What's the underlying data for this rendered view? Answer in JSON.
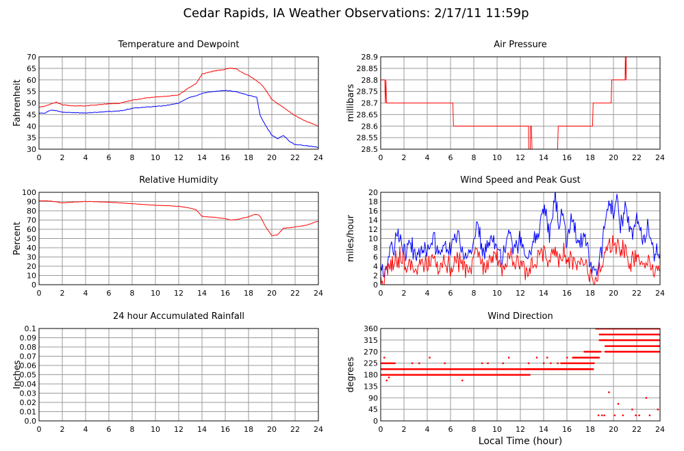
{
  "title": "Cedar Rapids, IA Weather Observations: 2/17/11 11:59p",
  "colors": {
    "red": "#ff0000",
    "blue": "#0000ff",
    "grid": "#999999"
  },
  "chart_data": [
    {
      "type": "line",
      "title": "Temperature and Dewpoint",
      "xlabel": "",
      "ylabel": "Fahrenheit",
      "xlim": [
        0,
        24
      ],
      "ylim": [
        30,
        70
      ],
      "xticks": [
        0,
        2,
        4,
        6,
        8,
        10,
        12,
        14,
        16,
        18,
        20,
        22,
        24
      ],
      "yticks": [
        30,
        35,
        40,
        45,
        50,
        55,
        60,
        65,
        70
      ],
      "ytick_labels": [
        "30",
        "35",
        "40",
        "45",
        "50",
        "55",
        "60",
        "65",
        "70"
      ],
      "grid": true,
      "series": [
        {
          "color": "#ff0000",
          "x": [
            0,
            0.5,
            1,
            1.5,
            2,
            3,
            4,
            5,
            6,
            7,
            8,
            9,
            10,
            11,
            12,
            13,
            13.5,
            14,
            15,
            16,
            16.5,
            17,
            17.5,
            18,
            19,
            19.5,
            20,
            21,
            22,
            23,
            24
          ],
          "y": [
            48.3,
            48.6,
            49.5,
            50.3,
            49.2,
            48.7,
            48.8,
            49.2,
            49.7,
            49.9,
            51.2,
            52,
            52.6,
            53,
            53.5,
            57,
            58.4,
            62.5,
            63.8,
            64.6,
            65.2,
            64.6,
            63,
            62,
            58.5,
            55.5,
            51.5,
            48,
            44.5,
            42,
            40
          ]
        },
        {
          "color": "#0000ff",
          "x": [
            0,
            0.5,
            1,
            1.5,
            2,
            3,
            4,
            5,
            6,
            7,
            8,
            9,
            10,
            11,
            12,
            13,
            13.5,
            14,
            15,
            16,
            17,
            18,
            18.7,
            19,
            19.5,
            20,
            20.5,
            21,
            21.5,
            22,
            23,
            24
          ],
          "y": [
            45.5,
            45.6,
            46.8,
            46.7,
            46,
            45.8,
            45.7,
            46,
            46.3,
            46.6,
            47.7,
            48.2,
            48.5,
            49,
            50,
            52.5,
            53,
            54.2,
            55,
            55.5,
            54.8,
            53.3,
            52.5,
            44.5,
            40,
            36,
            34.5,
            36,
            33.5,
            32,
            31.5,
            30.8
          ]
        }
      ]
    },
    {
      "type": "line",
      "title": "Air Pressure",
      "xlabel": "",
      "ylabel": "millibars",
      "xlim": [
        0,
        24
      ],
      "ylim": [
        28.5,
        28.9
      ],
      "xticks": [
        0,
        2,
        4,
        6,
        8,
        10,
        12,
        14,
        16,
        18,
        20,
        22,
        24
      ],
      "yticks": [
        28.5,
        28.55,
        28.6,
        28.65,
        28.7,
        28.75,
        28.8,
        28.85,
        28.9
      ],
      "ytick_labels": [
        "28.5",
        "28.55",
        "28.6",
        "28.65",
        "28.7",
        "28.75",
        "28.8",
        "28.85",
        "28.9"
      ],
      "grid": true,
      "series": [
        {
          "color": "#ff0000",
          "x": [
            0,
            0.35,
            0.4,
            0.45,
            0.5,
            6.2,
            6.25,
            12.7,
            12.72,
            12.85,
            12.87,
            12.95,
            13.0,
            13.15,
            13.2,
            15.2,
            15.25,
            18.2,
            18.25,
            19.8,
            19.85,
            21.0,
            21.02,
            21.08,
            21.1,
            24
          ],
          "y": [
            28.8,
            28.8,
            28.7,
            28.8,
            28.7,
            28.7,
            28.6,
            28.6,
            28.5,
            28.5,
            28.6,
            28.6,
            28.5,
            28.5,
            28.5,
            28.5,
            28.6,
            28.6,
            28.7,
            28.7,
            28.8,
            28.8,
            28.9,
            28.8,
            28.9,
            28.9
          ]
        }
      ]
    },
    {
      "type": "line",
      "title": "Relative Humidity",
      "xlabel": "",
      "ylabel": "Percent",
      "xlim": [
        0,
        24
      ],
      "ylim": [
        0,
        100
      ],
      "xticks": [
        0,
        2,
        4,
        6,
        8,
        10,
        12,
        14,
        16,
        18,
        20,
        22,
        24
      ],
      "yticks": [
        0,
        10,
        20,
        30,
        40,
        50,
        60,
        70,
        80,
        90,
        100
      ],
      "ytick_labels": [
        "0",
        "10",
        "20",
        "30",
        "40",
        "50",
        "60",
        "70",
        "80",
        "90",
        "100"
      ],
      "grid": true,
      "series": [
        {
          "color": "#ff0000",
          "x": [
            0,
            1,
            1.5,
            2,
            3,
            4,
            5,
            6,
            7,
            8,
            9,
            10,
            11,
            12,
            13,
            13.5,
            14,
            15,
            16,
            16.5,
            17,
            18,
            18.5,
            18.8,
            19,
            19.5,
            20,
            20.5,
            21,
            22,
            23,
            24
          ],
          "y": [
            91,
            90.5,
            89.5,
            88.5,
            89.5,
            90,
            89.8,
            89.2,
            88.6,
            87.6,
            86.8,
            86,
            85.5,
            84.8,
            83,
            81,
            74,
            73,
            71.5,
            70,
            70.5,
            73.5,
            76,
            76,
            74,
            62,
            53,
            54,
            61,
            62.5,
            64.5,
            69
          ]
        }
      ]
    },
    {
      "type": "line",
      "title": "Wind Speed and Peak Gust",
      "xlabel": "",
      "ylabel": "miles/hour",
      "xlim": [
        0,
        24
      ],
      "ylim": [
        0,
        20
      ],
      "xticks": [
        0,
        2,
        4,
        6,
        8,
        10,
        12,
        14,
        16,
        18,
        20,
        22,
        24
      ],
      "yticks": [
        0,
        2,
        4,
        6,
        8,
        10,
        12,
        14,
        16,
        18,
        20
      ],
      "ytick_labels": [
        "0",
        "2",
        "4",
        "6",
        "8",
        "10",
        "12",
        "14",
        "16",
        "18",
        "20"
      ],
      "grid": true,
      "series": [
        {
          "color": "#0000ff",
          "x": [
            0,
            0.3,
            0.6,
            1,
            1.5,
            2,
            2.5,
            3,
            3.5,
            4,
            4.5,
            5,
            5.5,
            6,
            6.5,
            7,
            7.5,
            8,
            8.3,
            8.6,
            9,
            9.5,
            10,
            10.5,
            11,
            11.5,
            12,
            12.5,
            13,
            13.5,
            14,
            14.5,
            15,
            15.3,
            15.6,
            16,
            16.5,
            17,
            17.5,
            18,
            18.5,
            19,
            19.3,
            19.6,
            20,
            20.3,
            20.6,
            21,
            21.5,
            22,
            22.5,
            23,
            23.5,
            24
          ],
          "y": [
            4,
            2,
            5,
            8,
            10,
            7,
            9,
            6,
            8,
            7,
            10,
            6,
            9,
            7,
            11,
            8,
            6,
            10,
            14,
            8,
            7,
            11,
            9,
            6,
            12,
            7,
            10,
            6,
            8,
            12,
            17,
            11,
            19,
            13,
            16,
            10,
            14,
            9,
            12,
            4,
            2,
            8,
            13,
            18,
            15,
            19,
            12,
            17,
            11,
            14,
            10,
            12,
            7,
            6
          ]
        },
        {
          "color": "#ff0000",
          "x": [
            0,
            0.3,
            0.6,
            1,
            1.5,
            2,
            2.5,
            3,
            3.5,
            4,
            4.5,
            5,
            5.5,
            6,
            6.5,
            7,
            7.5,
            8,
            8.3,
            8.6,
            9,
            9.5,
            10,
            10.5,
            11,
            11.5,
            12,
            12.5,
            13,
            13.5,
            14,
            14.5,
            15,
            15.3,
            15.6,
            16,
            16.5,
            17,
            17.5,
            18,
            18.5,
            19,
            19.3,
            19.6,
            20,
            20.3,
            20.6,
            21,
            21.5,
            22,
            22.5,
            23,
            23.5,
            24
          ],
          "y": [
            2,
            1,
            3,
            5,
            6,
            4,
            5,
            3,
            5,
            4,
            6,
            3,
            5,
            4,
            6,
            5,
            3,
            6,
            8,
            5,
            4,
            6,
            5,
            3,
            6,
            4,
            6,
            3,
            4,
            6,
            7,
            5,
            8,
            6,
            7,
            5,
            6,
            4,
            5,
            2,
            1,
            4,
            7,
            9,
            8,
            9,
            6,
            8,
            5,
            6,
            4,
            5,
            2,
            3
          ]
        }
      ]
    },
    {
      "type": "line",
      "title": "24 hour Accumulated Rainfall",
      "xlabel": "",
      "ylabel": "Inches",
      "xlim": [
        0,
        24
      ],
      "ylim": [
        0,
        0.1
      ],
      "xticks": [
        0,
        2,
        4,
        6,
        8,
        10,
        12,
        14,
        16,
        18,
        20,
        22,
        24
      ],
      "yticks": [
        0,
        0.01,
        0.02,
        0.03,
        0.04,
        0.05,
        0.06,
        0.07,
        0.08,
        0.09,
        0.1
      ],
      "ytick_labels": [
        "0.0",
        "0.01",
        "0.02",
        "0.03",
        "0.04",
        "0.05",
        "0.06",
        "0.07",
        "0.08",
        "0.09",
        "0.1"
      ],
      "grid": true,
      "series": [
        {
          "color": "#ff0000",
          "x": [
            0,
            24
          ],
          "y": [
            0,
            0
          ]
        }
      ]
    },
    {
      "type": "scatter",
      "title": "Wind Direction",
      "xlabel": "Local Time (hour)",
      "ylabel": "degrees",
      "xlim": [
        0,
        24
      ],
      "ylim": [
        0,
        360
      ],
      "xticks": [
        0,
        2,
        4,
        6,
        8,
        10,
        12,
        14,
        16,
        18,
        20,
        22,
        24
      ],
      "yticks": [
        0,
        45,
        90,
        135,
        180,
        225,
        270,
        315,
        360
      ],
      "ytick_labels": [
        "0",
        "45",
        "90",
        "135",
        "180",
        "225",
        "270",
        "315",
        "360"
      ],
      "grid": true,
      "series": [
        {
          "color": "#ff0000",
          "bands": [
            {
              "x_start": 0,
              "x_end": 1.4,
              "y": 180
            },
            {
              "x_start": 0,
              "x_end": 18.3,
              "y": 202
            },
            {
              "x_start": 0,
              "x_end": 1.2,
              "y": 225
            },
            {
              "x_start": 1.5,
              "x_end": 12.8,
              "y": 180
            },
            {
              "x_start": 12.4,
              "x_end": 18.0,
              "y": 202
            },
            {
              "x_start": 15.5,
              "x_end": 18.3,
              "y": 225
            },
            {
              "x_start": 16.5,
              "x_end": 18.8,
              "y": 247
            },
            {
              "x_start": 17.5,
              "x_end": 18.9,
              "y": 270
            },
            {
              "x_start": 18.5,
              "x_end": 24,
              "y": 360
            },
            {
              "x_start": 18.8,
              "x_end": 24,
              "y": 337
            },
            {
              "x_start": 18.8,
              "x_end": 24,
              "y": 315
            },
            {
              "x_start": 19.3,
              "x_end": 24,
              "y": 292
            },
            {
              "x_start": 19.3,
              "x_end": 24,
              "y": 270
            }
          ],
          "x": [
            0.3,
            0.5,
            0.7,
            2.7,
            3.3,
            4.2,
            5.5,
            7.0,
            8.7,
            9.2,
            10.5,
            11.0,
            12.7,
            13.4,
            14.0,
            14.3,
            14.6,
            15.2,
            15.5,
            16.0,
            18.7,
            19.0,
            19.2,
            19.6,
            20.1,
            20.4,
            20.8,
            21.6,
            21.9,
            22.2,
            22.8,
            23.1,
            23.8
          ],
          "y": [
            247,
            158,
            170,
            225,
            225,
            247,
            225,
            158,
            225,
            225,
            225,
            247,
            225,
            247,
            225,
            247,
            225,
            225,
            225,
            247,
            22,
            22,
            22,
            112,
            22,
            67,
            22,
            45,
            22,
            22,
            90,
            22,
            45
          ]
        }
      ]
    }
  ]
}
